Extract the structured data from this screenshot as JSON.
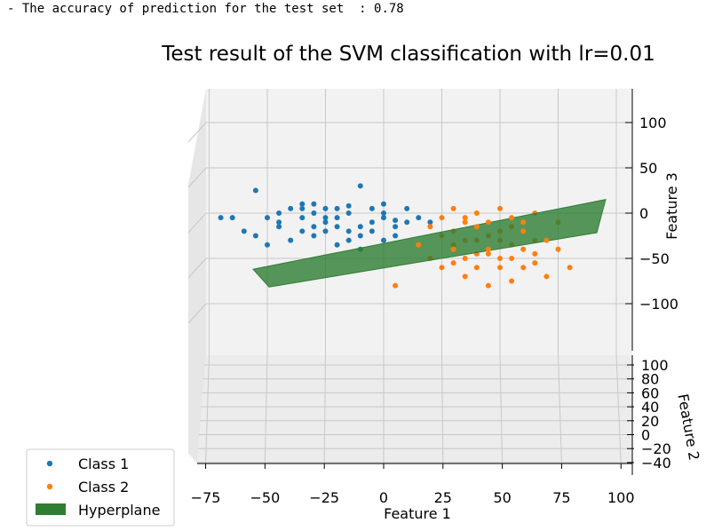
{
  "console": {
    "prefix": "- ",
    "label": "The accuracy of prediction for the test set",
    "separator": "  : ",
    "value": "0.78"
  },
  "chart_data": {
    "type": "scatter",
    "projection": "3d",
    "title": "Test result of the SVM classification with lr=0.01",
    "xlabel": "Feature 1",
    "ylabel": "Feature 2",
    "zlabel": "Feature 3",
    "x_ticks": [
      "−75",
      "−50",
      "−25",
      "0",
      "25",
      "50",
      "75",
      "100"
    ],
    "y_ticks": [
      "100",
      "80",
      "60",
      "40",
      "20",
      "0",
      "−20",
      "−40"
    ],
    "z_ticks": [
      "100",
      "50",
      "0",
      "−50",
      "−100"
    ],
    "grid": true,
    "legend_position": "bottom-left",
    "legend": [
      "Class 1",
      "Class 2",
      "Hyperplane"
    ],
    "colors": {
      "class1": "#1f77b4",
      "class2": "#ff7f0e",
      "hyperplane": "#2e7d32"
    },
    "series": [
      {
        "name": "Class 1",
        "points": [
          [
            -55,
            25
          ],
          [
            -50,
            -5
          ],
          [
            -45,
            -10
          ],
          [
            -35,
            5
          ],
          [
            -30,
            -15
          ],
          [
            -25,
            5
          ],
          [
            -20,
            -5
          ],
          [
            -15,
            -20
          ],
          [
            -10,
            30
          ],
          [
            -5,
            -10
          ],
          [
            0,
            0
          ],
          [
            5,
            -25
          ],
          [
            -40,
            -30
          ],
          [
            -60,
            -20
          ],
          [
            -20,
            -35
          ],
          [
            -10,
            -25
          ],
          [
            0,
            -5
          ],
          [
            10,
            -10
          ],
          [
            -30,
            10
          ],
          [
            -15,
            0
          ],
          [
            -5,
            5
          ],
          [
            -35,
            -20
          ],
          [
            -25,
            -10
          ],
          [
            -45,
            0
          ],
          [
            -55,
            -25
          ],
          [
            5,
            -15
          ],
          [
            15,
            -5
          ],
          [
            -20,
            -15
          ],
          [
            -35,
            -5
          ],
          [
            -10,
            -40
          ],
          [
            -30,
            -25
          ],
          [
            -15,
            -30
          ],
          [
            10,
            5
          ],
          [
            -50,
            -35
          ],
          [
            20,
            -10
          ],
          [
            -40,
            5
          ],
          [
            -5,
            -20
          ],
          [
            -25,
            -5
          ],
          [
            0,
            -30
          ],
          [
            -65,
            -5
          ],
          [
            -70,
            -5
          ],
          [
            -20,
            5
          ],
          [
            5,
            -8
          ],
          [
            -30,
            0
          ],
          [
            -10,
            -15
          ],
          [
            -25,
            -20
          ],
          [
            -15,
            8
          ],
          [
            0,
            10
          ],
          [
            -45,
            -15
          ],
          [
            -35,
            10
          ]
        ]
      },
      {
        "name": "Class 2",
        "points": [
          [
            30,
            5
          ],
          [
            35,
            -5
          ],
          [
            40,
            0
          ],
          [
            45,
            -10
          ],
          [
            50,
            5
          ],
          [
            55,
            -15
          ],
          [
            60,
            -20
          ],
          [
            65,
            -30
          ],
          [
            40,
            -30
          ],
          [
            30,
            -40
          ],
          [
            25,
            -25
          ],
          [
            35,
            -50
          ],
          [
            45,
            -45
          ],
          [
            50,
            -60
          ],
          [
            55,
            -50
          ],
          [
            60,
            -40
          ],
          [
            65,
            -55
          ],
          [
            70,
            -70
          ],
          [
            40,
            -60
          ],
          [
            50,
            -30
          ],
          [
            20,
            -50
          ],
          [
            15,
            -35
          ],
          [
            25,
            -60
          ],
          [
            35,
            -70
          ],
          [
            45,
            -80
          ],
          [
            55,
            -75
          ],
          [
            30,
            -20
          ],
          [
            60,
            -10
          ],
          [
            75,
            -10
          ],
          [
            80,
            -60
          ],
          [
            45,
            -40
          ],
          [
            50,
            -20
          ],
          [
            35,
            -30
          ],
          [
            40,
            -15
          ],
          [
            55,
            -35
          ],
          [
            65,
            -45
          ],
          [
            30,
            -55
          ],
          [
            25,
            -5
          ],
          [
            60,
            -60
          ],
          [
            70,
            -30
          ],
          [
            5,
            -80
          ],
          [
            40,
            -45
          ],
          [
            50,
            -50
          ],
          [
            45,
            -25
          ],
          [
            35,
            -10
          ],
          [
            55,
            -5
          ],
          [
            65,
            0
          ],
          [
            75,
            -40
          ],
          [
            20,
            -15
          ],
          [
            30,
            -35
          ]
        ]
      }
    ],
    "hyperplane": {
      "x": [
        -50,
        100
      ],
      "z_low": [
        -60,
        0
      ],
      "z_high": [
        -50,
        15
      ]
    }
  }
}
